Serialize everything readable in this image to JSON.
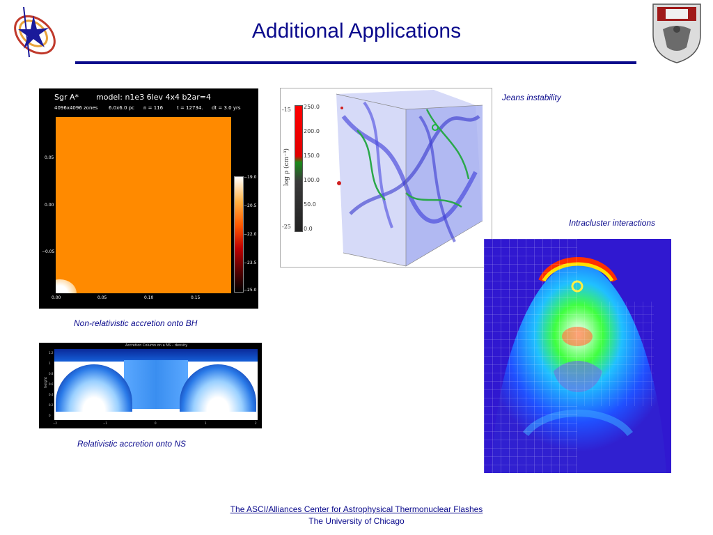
{
  "slide": {
    "title": "Additional Applications"
  },
  "captions": {
    "bh": "Non-relativistic accretion onto BH",
    "ns": "Relativistic accretion onto NS",
    "jeans": "Jeans instability",
    "intracluster": "Intracluster interactions"
  },
  "bh_panel": {
    "object": "Sgr A*",
    "model": "model: n1e3 6lev 4x4 b2ar=4",
    "zones": "4096x4096 zones",
    "size": "6.0x6.0 pc",
    "n": "n =    116",
    "t": "t = 12734.",
    "dt": "dt =    3.0 yrs",
    "y_ticks": [
      "0.05",
      "0.00",
      "−0.05"
    ],
    "x_ticks": [
      "0.00",
      "0.05",
      "0.10",
      "0.15"
    ],
    "cbar_ticks": [
      "−19.0",
      "−20.5",
      "−22.0",
      "−23.5",
      "−25.0"
    ],
    "colors": {
      "field": "#ff8a00",
      "bg": "#000000"
    }
  },
  "ns_panel": {
    "title": "Accretion Column on a NS – density",
    "ylabel": "height",
    "y_ticks": [
      "1.2",
      "1",
      "0.8",
      "0.6",
      "0.4",
      "0.2",
      "0"
    ],
    "x_ticks": [
      "−2",
      "−1",
      "0",
      "1",
      "2"
    ]
  },
  "jeans_panel": {
    "left_ticks": [
      "-15",
      "-25"
    ],
    "cbar_ticks": [
      "250.0",
      "200.0",
      "150.0",
      "100.0",
      "50.0",
      "0.0"
    ],
    "axis_label": "log  ρ  (cm⁻³)"
  },
  "footer": {
    "link": "The ASCI/Alliances Center for Astrophysical Thermonuclear Flashes",
    "institution": "The University of Chicago"
  }
}
